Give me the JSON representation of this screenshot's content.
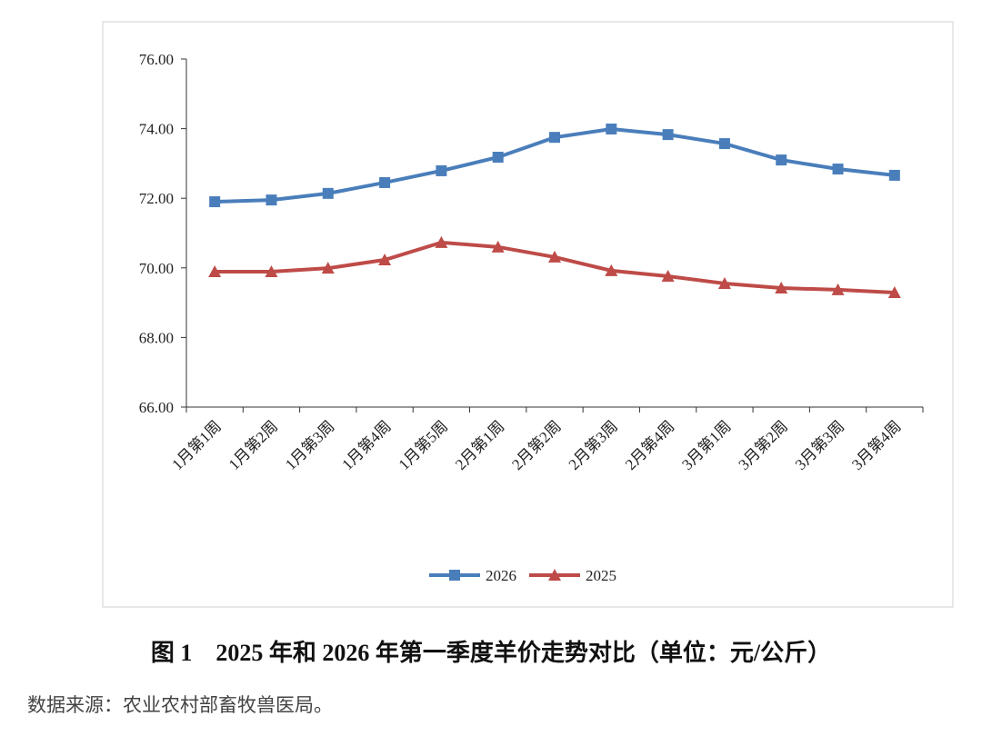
{
  "chart_data": {
    "type": "line",
    "caption": "图 1　2025 年和 2026 年第一季度羊价走势对比（单位：元/公斤）",
    "source": "数据来源：农业农村部畜牧兽医局。",
    "categories": [
      "1月第1周",
      "1月第2周",
      "1月第3周",
      "1月第4周",
      "1月第5周",
      "2月第1周",
      "2月第2周",
      "2月第3周",
      "2月第4周",
      "3月第1周",
      "3月第2周",
      "3月第3周",
      "3月第4周"
    ],
    "series": [
      {
        "name": "2026",
        "color": "#4a7ebb",
        "marker": "square",
        "values": [
          71.9,
          71.95,
          72.14,
          72.45,
          72.79,
          73.18,
          73.75,
          73.99,
          73.83,
          73.57,
          73.1,
          72.84,
          72.66
        ]
      },
      {
        "name": "2025",
        "color": "#be4b48",
        "marker": "triangle",
        "values": [
          69.89,
          69.89,
          69.99,
          70.23,
          70.73,
          70.6,
          70.31,
          69.92,
          69.76,
          69.55,
          69.42,
          69.37,
          69.29
        ]
      }
    ],
    "ylim": [
      66,
      76
    ],
    "yticks": [
      {
        "value": 66,
        "label": "66.00"
      },
      {
        "value": 68,
        "label": "68.00"
      },
      {
        "value": 70,
        "label": "70.00"
      },
      {
        "value": 72,
        "label": "72.00"
      },
      {
        "value": 74,
        "label": "74.00"
      },
      {
        "value": 76,
        "label": "76.00"
      }
    ],
    "legend": "bottom"
  }
}
